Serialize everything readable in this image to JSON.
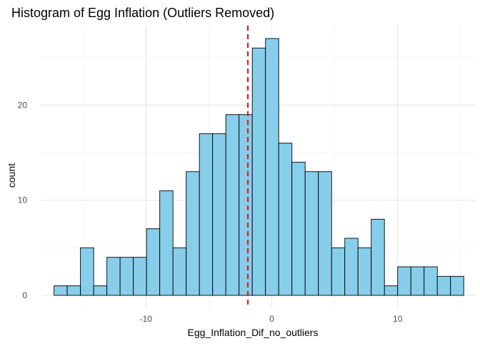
{
  "chart_data": {
    "type": "bar",
    "title": "Histogram of Egg Inflation (Outliers Removed)",
    "xlabel": "Egg_Inflation_Dif_no_outliers",
    "ylabel": "count",
    "bin_width": 1.05,
    "bins": [
      {
        "x_start": -17.3,
        "x_end": -16.25,
        "count": 1
      },
      {
        "x_start": -16.25,
        "x_end": -15.2,
        "count": 1
      },
      {
        "x_start": -15.2,
        "x_end": -14.15,
        "count": 5
      },
      {
        "x_start": -14.15,
        "x_end": -13.1,
        "count": 1
      },
      {
        "x_start": -13.1,
        "x_end": -12.05,
        "count": 4
      },
      {
        "x_start": -12.05,
        "x_end": -11.0,
        "count": 4
      },
      {
        "x_start": -11.0,
        "x_end": -9.95,
        "count": 4
      },
      {
        "x_start": -9.95,
        "x_end": -8.9,
        "count": 7
      },
      {
        "x_start": -8.9,
        "x_end": -7.85,
        "count": 11
      },
      {
        "x_start": -7.85,
        "x_end": -6.8,
        "count": 5
      },
      {
        "x_start": -6.8,
        "x_end": -5.75,
        "count": 13
      },
      {
        "x_start": -5.75,
        "x_end": -4.7,
        "count": 17
      },
      {
        "x_start": -4.7,
        "x_end": -3.65,
        "count": 17
      },
      {
        "x_start": -3.65,
        "x_end": -2.6,
        "count": 19
      },
      {
        "x_start": -2.6,
        "x_end": -1.55,
        "count": 19
      },
      {
        "x_start": -1.55,
        "x_end": -0.5,
        "count": 26
      },
      {
        "x_start": -0.5,
        "x_end": 0.55,
        "count": 27
      },
      {
        "x_start": 0.55,
        "x_end": 1.6,
        "count": 16
      },
      {
        "x_start": 1.6,
        "x_end": 2.65,
        "count": 14
      },
      {
        "x_start": 2.65,
        "x_end": 3.7,
        "count": 13
      },
      {
        "x_start": 3.7,
        "x_end": 4.75,
        "count": 13
      },
      {
        "x_start": 4.75,
        "x_end": 5.8,
        "count": 5
      },
      {
        "x_start": 5.8,
        "x_end": 6.85,
        "count": 6
      },
      {
        "x_start": 6.85,
        "x_end": 7.9,
        "count": 5
      },
      {
        "x_start": 7.9,
        "x_end": 8.95,
        "count": 8
      },
      {
        "x_start": 8.95,
        "x_end": 10.0,
        "count": 1
      },
      {
        "x_start": 10.0,
        "x_end": 11.05,
        "count": 3
      },
      {
        "x_start": 11.05,
        "x_end": 12.1,
        "count": 3
      },
      {
        "x_start": 12.1,
        "x_end": 13.15,
        "count": 3
      },
      {
        "x_start": 13.15,
        "x_end": 14.2,
        "count": 2
      },
      {
        "x_start": 14.2,
        "x_end": 15.25,
        "count": 2
      }
    ],
    "x_ticks": [
      -10,
      0,
      10
    ],
    "y_ticks": [
      0,
      10,
      20
    ],
    "xlim": [
      -18.3,
      16.2
    ],
    "ylim": [
      -1.35,
      28.35
    ],
    "grid": true,
    "reference_line": {
      "x": -1.9,
      "style": "dashed",
      "color": "#e41a1c"
    },
    "bar_fill": "#87ceeb",
    "bar_stroke": "#000000",
    "grid_major_color": "#e6e6e6",
    "grid_minor_color": "#f2f2f2"
  }
}
